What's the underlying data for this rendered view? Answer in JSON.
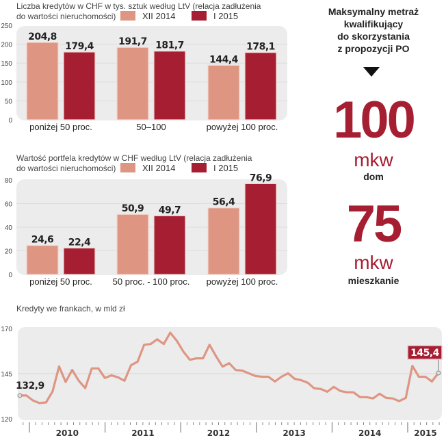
{
  "colors": {
    "xii_2014": "#de9683",
    "i_2015": "#a61e32",
    "line": "#de9683",
    "panel": "#ececec",
    "accent": "#a61e32"
  },
  "side_panel": {
    "heading_lines": [
      "Maksymalny metraż",
      "kwalifikujący",
      "do skorzystania",
      "z propozycji PO"
    ],
    "arrow_icon": "down-triangle-icon",
    "items": [
      {
        "value": "100",
        "unit": "mkw",
        "label": "dom"
      },
      {
        "value": "75",
        "unit": "mkw",
        "label": "mieszkanie"
      }
    ]
  },
  "chart_data": [
    {
      "type": "bar",
      "title": "Liczba kredytów w CHF w tys. sztuk według LtV (relacja zadłużenia do wartości nieruchomości)",
      "title_lines": [
        "Liczba kredytów w CHF w tys. sztuk według LtV (relacja zadłużenia",
        "do wartości nieruchomości)"
      ],
      "categories": [
        "poniżej 50 proc.",
        "50–100",
        "powyżej 100 proc."
      ],
      "series": [
        {
          "name": "XII 2014",
          "values": [
            204.8,
            191.7,
            144.4
          ],
          "labels": [
            "204,8",
            "191,7",
            "144,4"
          ]
        },
        {
          "name": "I 2015",
          "values": [
            179.4,
            181.7,
            178.1
          ],
          "labels": [
            "179,4",
            "181,7",
            "178,1"
          ]
        }
      ],
      "yticks": [
        "0",
        "50",
        "100",
        "150",
        "200",
        "250"
      ],
      "ytick_values": [
        0,
        50,
        100,
        150,
        200,
        250
      ],
      "ylim": [
        0,
        250
      ],
      "xlabel": "",
      "ylabel": "",
      "legend": "top",
      "grid": true
    },
    {
      "type": "bar",
      "title": "Wartość portfela kredytów w CHF według LtV (relacja zadłużenia do wartości nieruchomości)",
      "title_lines": [
        "Wartość portfela kredytów w CHF według LtV (relacja zadłużenia",
        "do wartości nieruchomości)"
      ],
      "categories": [
        "poniżej 50 proc.",
        "50 proc. - 100 proc.",
        "powyżej 100 proc."
      ],
      "series": [
        {
          "name": "XII 2014",
          "values": [
            24.6,
            50.9,
            56.4
          ],
          "labels": [
            "24,6",
            "50,9",
            "56,4"
          ]
        },
        {
          "name": "I 2015",
          "values": [
            22.4,
            49.7,
            76.9
          ],
          "labels": [
            "22,4",
            "49,7",
            "76,9"
          ]
        }
      ],
      "yticks": [
        "0",
        "20",
        "40",
        "60",
        "80"
      ],
      "ytick_values": [
        0,
        20,
        40,
        60,
        80
      ],
      "ylim": [
        0,
        80
      ],
      "xlabel": "",
      "ylabel": "",
      "legend": "top",
      "grid": true
    },
    {
      "type": "line",
      "title": "Kredyty we frankach, w mld zł",
      "x_years": [
        "2010",
        "2011",
        "2012",
        "2013",
        "2014",
        "2015"
      ],
      "yticks": [
        "120",
        "145",
        "170"
      ],
      "ytick_values": [
        120,
        145,
        170
      ],
      "ylim": [
        120,
        170
      ],
      "grid": true,
      "series": [
        {
          "name": "Kredyty we frankach",
          "values": [
            132.9,
            132.9,
            130.2,
            128.7,
            129.1,
            135.1,
            149.0,
            140.4,
            147.1,
            141.1,
            137.0,
            147.9,
            147.9,
            142.6,
            144.1,
            143.0,
            141.1,
            149.7,
            151.6,
            161.0,
            161.4,
            164.0,
            161.4,
            167.7,
            163.2,
            157.2,
            152.7,
            153.5,
            153.5,
            161.0,
            154.6,
            148.9,
            150.8,
            147.0,
            146.7,
            145.2,
            143.7,
            143.3,
            143.3,
            140.7,
            143.3,
            145.2,
            142.2,
            141.4,
            140.0,
            136.9,
            136.5,
            135.0,
            137.7,
            135.4,
            134.7,
            134.7,
            132.0,
            132.0,
            131.3,
            133.9,
            131.6,
            131.3,
            129.8,
            131.6,
            149.3,
            143.3,
            143.3,
            140.7,
            145.4
          ]
        }
      ],
      "annotations": [
        {
          "label": "132,9",
          "point": "first"
        },
        {
          "label": "145,4",
          "point": "last"
        }
      ]
    }
  ]
}
